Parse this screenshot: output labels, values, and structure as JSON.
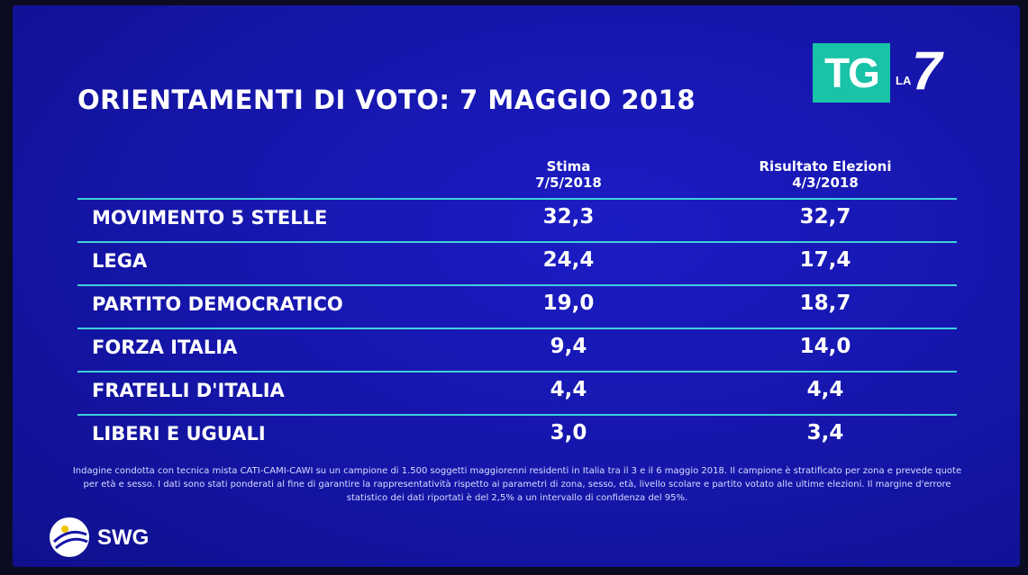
{
  "title": "ORIENTAMENTI DI VOTO: 7 MAGGIO 2018",
  "logo": {
    "tg": "TG",
    "la": "LA",
    "seven": "7"
  },
  "chart_data": {
    "type": "table",
    "columns": [
      {
        "line1": "Stima",
        "line2": "7/5/2018"
      },
      {
        "line1": "Risultato Elezioni",
        "line2": "4/3/2018"
      }
    ],
    "rows": [
      {
        "party": "MOVIMENTO 5 STELLE",
        "stima": "32,3",
        "risultato": "32,7"
      },
      {
        "party": "LEGA",
        "stima": "24,4",
        "risultato": "17,4"
      },
      {
        "party": "PARTITO DEMOCRATICO",
        "stima": "19,0",
        "risultato": "18,7"
      },
      {
        "party": "FORZA ITALIA",
        "stima": "9,4",
        "risultato": "14,0"
      },
      {
        "party": "FRATELLI D'ITALIA",
        "stima": "4,4",
        "risultato": "4,4"
      },
      {
        "party": "LIBERI E UGUALI",
        "stima": "3,0",
        "risultato": "3,4"
      }
    ]
  },
  "footnote": "Indagine condotta con tecnica mista CATI-CAMI-CAWI su un campione di 1.500 soggetti maggiorenni residenti in Italia tra il 3 e il 6 maggio 2018. Il campione è stratificato per zona e prevede quote per età e sesso. I dati sono stati ponderati al fine di garantire la rappresentatività rispetto ai parametri di zona, sesso, età, livello scolare e partito votato alle ultime elezioni. Il margine d'errore statistico dei dati riportati è del 2,5% a un intervallo di confidenza del 95%.",
  "source_logo": "SWG",
  "colors": {
    "background": "#1515a8",
    "rule": "#3fd0d8",
    "logo_teal": "#19c3a8",
    "text": "#ffffff"
  }
}
